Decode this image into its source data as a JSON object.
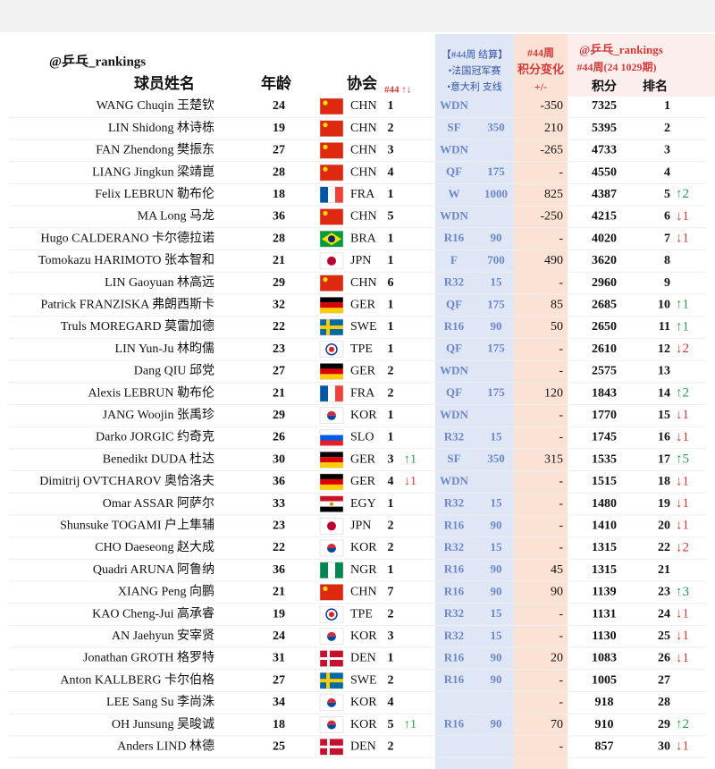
{
  "header": {
    "handle": "@乒乓_rankings",
    "col_name": "球员姓名",
    "col_age": "年龄",
    "col_assoc": "协会",
    "col_assoc_move": "#44 ↑↓",
    "result_lines": [
      "【#44周 结算】",
      "•法国冠军赛",
      "•意大利 支线"
    ],
    "change_lines": [
      "#44周",
      "积分变化",
      "+/-"
    ],
    "ranking_handle": "@乒乓_rankings",
    "ranking_period": "#44周(24 1029期)",
    "col_points": "积分",
    "col_rank": "排名"
  },
  "table": {
    "rows": [
      {
        "name": "WANG Chuqin 王楚钦",
        "age": 24,
        "assoc": "CHN",
        "assoc_rank": 1,
        "result": "WDN",
        "change": -350,
        "points": 7325,
        "rank": 1
      },
      {
        "name": "LIN Shidong 林诗栋",
        "age": 19,
        "assoc": "CHN",
        "assoc_rank": 2,
        "result": "SF",
        "result_points": 350,
        "change": 210,
        "points": 5395,
        "rank": 2
      },
      {
        "name": "FAN Zhendong 樊振东",
        "age": 27,
        "assoc": "CHN",
        "assoc_rank": 3,
        "result": "WDN",
        "change": -265,
        "points": 4733,
        "rank": 3
      },
      {
        "name": "LIANG Jingkun 梁靖崑",
        "age": 28,
        "assoc": "CHN",
        "assoc_rank": 4,
        "result": "QF",
        "result_points": 175,
        "change": "-",
        "points": 4550,
        "rank": 4
      },
      {
        "name": "Felix LEBRUN 勒布伦",
        "age": 18,
        "assoc": "FRA",
        "assoc_rank": 1,
        "result": "W",
        "result_points": 1000,
        "change": 825,
        "points": 4387,
        "rank": 5,
        "rank_move": "↑2"
      },
      {
        "name": "MA Long 马龙",
        "age": 36,
        "assoc": "CHN",
        "assoc_rank": 5,
        "result": "WDN",
        "change": -250,
        "points": 4215,
        "rank": 6,
        "rank_move": "↓1"
      },
      {
        "name": "Hugo CALDERANO 卡尔德拉诺",
        "age": 28,
        "assoc": "BRA",
        "assoc_rank": 1,
        "result": "R16",
        "result_points": 90,
        "change": "-",
        "points": 4020,
        "rank": 7,
        "rank_move": "↓1"
      },
      {
        "name": "Tomokazu HARIMOTO 张本智和",
        "age": 21,
        "assoc": "JPN",
        "assoc_rank": 1,
        "result": "F",
        "result_points": 700,
        "change": 490,
        "points": 3620,
        "rank": 8
      },
      {
        "name": "LIN Gaoyuan 林高远",
        "age": 29,
        "assoc": "CHN",
        "assoc_rank": 6,
        "result": "R32",
        "result_points": 15,
        "change": "-",
        "points": 2960,
        "rank": 9
      },
      {
        "name": "Patrick FRANZISKA 弗朗西斯卡",
        "age": 32,
        "assoc": "GER",
        "assoc_rank": 1,
        "result": "QF",
        "result_points": 175,
        "change": 85,
        "points": 2685,
        "rank": 10,
        "rank_move": "↑1"
      },
      {
        "name": "Truls MOREGARD 莫雷加德",
        "age": 22,
        "assoc": "SWE",
        "assoc_rank": 1,
        "result": "R16",
        "result_points": 90,
        "change": 50,
        "points": 2650,
        "rank": 11,
        "rank_move": "↑1"
      },
      {
        "name": "LIN Yun-Ju 林昀儒",
        "age": 23,
        "assoc": "TPE",
        "assoc_rank": 1,
        "result": "QF",
        "result_points": 175,
        "change": "-",
        "points": 2610,
        "rank": 12,
        "rank_move": "↓2"
      },
      {
        "name": "Dang QIU 邱党",
        "age": 27,
        "assoc": "GER",
        "assoc_rank": 2,
        "result": "WDN",
        "change": "-",
        "points": 2575,
        "rank": 13
      },
      {
        "name": "Alexis LEBRUN 勒布伦",
        "age": 21,
        "assoc": "FRA",
        "assoc_rank": 2,
        "result": "QF",
        "result_points": 175,
        "change": 120,
        "points": 1843,
        "rank": 14,
        "rank_move": "↑2"
      },
      {
        "name": "JANG Woojin 张禹珍",
        "age": 29,
        "assoc": "KOR",
        "assoc_rank": 1,
        "result": "WDN",
        "change": "-",
        "points": 1770,
        "rank": 15,
        "rank_move": "↓1"
      },
      {
        "name": "Darko JORGIC 约奇克",
        "age": 26,
        "assoc": "SLO",
        "assoc_rank": 1,
        "result": "R32",
        "result_points": 15,
        "change": "-",
        "points": 1745,
        "rank": 16,
        "rank_move": "↓1"
      },
      {
        "name": "Benedikt DUDA 杜达",
        "age": 30,
        "assoc": "GER",
        "assoc_rank": 3,
        "assoc_move": "↑1",
        "result": "SF",
        "result_points": 350,
        "change": 315,
        "points": 1535,
        "rank": 17,
        "rank_move": "↑5"
      },
      {
        "name": "Dimitrij OVTCHAROV 奥恰洛夫",
        "age": 36,
        "assoc": "GER",
        "assoc_rank": 4,
        "assoc_move": "↓1",
        "result": "WDN",
        "change": "-",
        "points": 1515,
        "rank": 18,
        "rank_move": "↓1"
      },
      {
        "name": "Omar ASSAR 阿萨尔",
        "age": 33,
        "assoc": "EGY",
        "assoc_rank": 1,
        "result": "R32",
        "result_points": 15,
        "change": "-",
        "points": 1480,
        "rank": 19,
        "rank_move": "↓1"
      },
      {
        "name": "Shunsuke TOGAMI 户上隼辅",
        "age": 23,
        "assoc": "JPN",
        "assoc_rank": 2,
        "result": "R16",
        "result_points": 90,
        "change": "-",
        "points": 1410,
        "rank": 20,
        "rank_move": "↓1"
      },
      {
        "name": "CHO Daeseong 赵大成",
        "age": 22,
        "assoc": "KOR",
        "assoc_rank": 2,
        "result": "R32",
        "result_points": 15,
        "change": "-",
        "points": 1315,
        "rank": 22,
        "rank_move": "↓2"
      },
      {
        "name": "Quadri ARUNA 阿鲁纳",
        "age": 36,
        "assoc": "NGR",
        "assoc_rank": 1,
        "result": "R16",
        "result_points": 90,
        "change": 45,
        "points": 1315,
        "rank": 21
      },
      {
        "name": "XIANG Peng 向鹏",
        "age": 21,
        "assoc": "CHN",
        "assoc_rank": 7,
        "result": "R16",
        "result_points": 90,
        "change": 90,
        "points": 1139,
        "rank": 23,
        "rank_move": "↑3"
      },
      {
        "name": "KAO Cheng-Jui 高承睿",
        "age": 19,
        "assoc": "TPE",
        "assoc_rank": 2,
        "result": "R32",
        "result_points": 15,
        "change": "-",
        "points": 1131,
        "rank": 24,
        "rank_move": "↓1"
      },
      {
        "name": "AN Jaehyun 安宰贤",
        "age": 24,
        "assoc": "KOR",
        "assoc_rank": 3,
        "result": "R32",
        "result_points": 15,
        "change": "-",
        "points": 1130,
        "rank": 25,
        "rank_move": "↓1"
      },
      {
        "name": "Jonathan GROTH 格罗特",
        "age": 31,
        "assoc": "DEN",
        "assoc_rank": 1,
        "result": "R16",
        "result_points": 90,
        "change": 20,
        "points": 1083,
        "rank": 26,
        "rank_move": "↓1"
      },
      {
        "name": "Anton KALLBERG 卡尔伯格",
        "age": 27,
        "assoc": "SWE",
        "assoc_rank": 2,
        "result": "R16",
        "result_points": 90,
        "change": "-",
        "points": 1005,
        "rank": 27
      },
      {
        "name": "LEE Sang Su 李尚洙",
        "age": 34,
        "assoc": "KOR",
        "assoc_rank": 4,
        "change": "-",
        "points": 918,
        "rank": 28
      },
      {
        "name": "OH Junsung 吴晙诚",
        "age": 18,
        "assoc": "KOR",
        "assoc_rank": 5,
        "assoc_move": "↑1",
        "result": "R16",
        "result_points": 90,
        "change": 70,
        "points": 910,
        "rank": 29,
        "rank_move": "↑2"
      },
      {
        "name": "Anders LIND 林德",
        "age": 25,
        "assoc": "DEN",
        "assoc_rank": 2,
        "change": "-",
        "points": 857,
        "rank": 30,
        "rank_move": "↓1"
      }
    ]
  }
}
